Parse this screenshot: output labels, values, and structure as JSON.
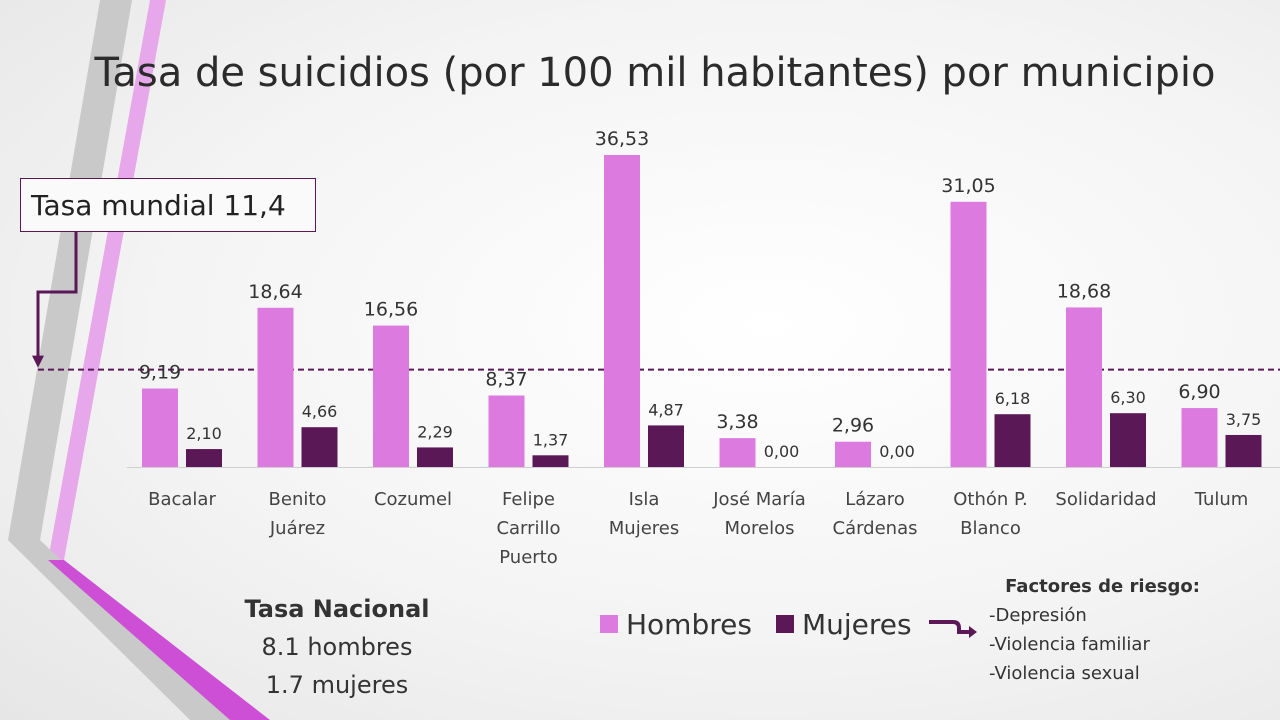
{
  "title": "Tasa de suicidios (por 100 mil habitantes) por municipio",
  "world_rate_label": "Tasa mundial 11,4",
  "national": {
    "heading": "Tasa Nacional",
    "men": "8.1 hombres",
    "women": "1.7 mujeres"
  },
  "risk_factors": {
    "heading": "Factores de riesgo:",
    "items": [
      "-Depresión",
      "-Violencia familiar",
      "-Violencia sexual"
    ]
  },
  "colors": {
    "hombres": "#dd7ae0",
    "mujeres": "#5a1857",
    "reference_line": "#5a1857"
  },
  "chart_data": {
    "type": "bar",
    "title": "Tasa de suicidios (por 100 mil habitantes) por municipio",
    "categories": [
      [
        "Bacalar"
      ],
      [
        "Benito",
        "Juárez"
      ],
      [
        "Cozumel"
      ],
      [
        "Felipe",
        "Carrillo",
        "Puerto"
      ],
      [
        "Isla",
        "Mujeres"
      ],
      [
        "José María",
        "Morelos"
      ],
      [
        "Lázaro",
        "Cárdenas"
      ],
      [
        "Othón P.",
        "Blanco"
      ],
      [
        "Solidaridad"
      ],
      [
        "Tulum"
      ]
    ],
    "series": [
      {
        "name": "Hombres",
        "values": [
          9.19,
          18.64,
          16.56,
          8.37,
          36.53,
          3.38,
          2.96,
          31.05,
          18.68,
          6.9
        ],
        "labels": [
          "9,19",
          "18,64",
          "16,56",
          "8,37",
          "36,53",
          "3,38",
          "2,96",
          "31,05",
          "18,68",
          "6,90"
        ]
      },
      {
        "name": "Mujeres",
        "values": [
          2.1,
          4.66,
          2.29,
          1.37,
          4.87,
          0.0,
          0.0,
          6.18,
          6.3,
          3.75
        ],
        "labels": [
          "2,10",
          "4,66",
          "2,29",
          "1,37",
          "4,87",
          "0,00",
          "0,00",
          "6,18",
          "6,30",
          "3,75"
        ]
      }
    ],
    "reference_line": {
      "value": 11.4
    },
    "ylim": [
      0,
      36.53
    ],
    "xlabel": "",
    "ylabel": "",
    "grid": false,
    "legend": "bottom"
  }
}
